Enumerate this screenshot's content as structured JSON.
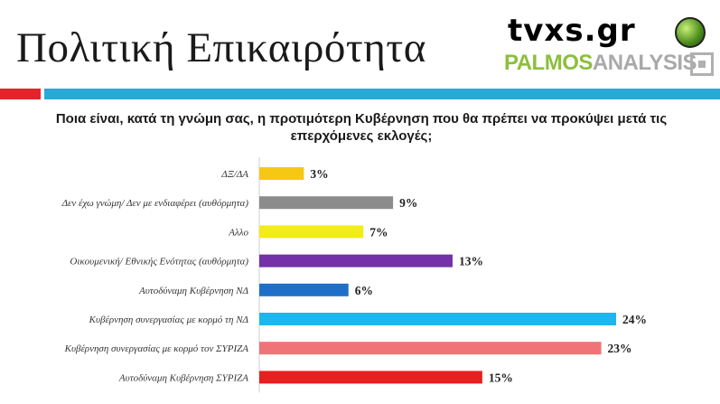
{
  "header": {
    "title": "Πολιτική Επικαιρότητα",
    "logo_tvxs": "tvxs.gr",
    "logo_palmos_1": "PALMOS",
    "logo_palmos_2": "ANALYSIS"
  },
  "chart_data": {
    "type": "bar",
    "orientation": "horizontal",
    "title": "Ποια είναι, κατά τη γνώμη σας, η προτιμότερη Κυβέρνηση που θα πρέπει να προκύψει μετά τις επερχόμενες εκλογές;",
    "categories": [
      "ΔΞ/ΔΑ",
      "Δεν έχω γνώμη/ Δεν με ενδιαφέρει (αυθόρμητα)",
      "Αλλο",
      "Οικουμενική/ Εθνικής Ενότητας (αυθόρμητα)",
      "Αυτοδύναμη Κυβέρνηση ΝΔ",
      "Κυβέρνηση συνεργασίας με κορμό τη ΝΔ",
      "Κυβέρνηση συνεργασίας με κορμό τον ΣΥΡΙΖΑ",
      "Αυτοδύναμη Κυβέρνηση ΣΥΡΙΖΑ"
    ],
    "values": [
      3,
      9,
      7,
      13,
      6,
      24,
      23,
      15
    ],
    "value_labels": [
      "3%",
      "9%",
      "7%",
      "13%",
      "6%",
      "24%",
      "23%",
      "15%"
    ],
    "colors": [
      "#f5c814",
      "#8c8c8c",
      "#f2ec1a",
      "#7332a8",
      "#1f6fc8",
      "#1fb6ef",
      "#f07378",
      "#e8201f"
    ],
    "xlim": [
      0,
      24
    ],
    "grid": false,
    "legend": "none"
  }
}
